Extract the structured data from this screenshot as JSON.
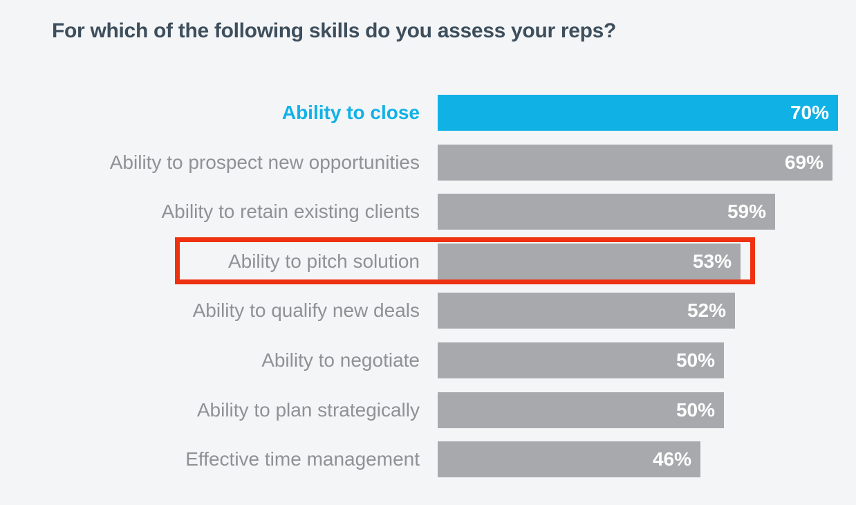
{
  "page": {
    "background": "#f4f5f7"
  },
  "chart_data": {
    "type": "bar",
    "orientation": "horizontal",
    "title": "For which of the following skills do you assess your reps?",
    "categories": [
      "Ability to close",
      "Ability to prospect new opportunities",
      "Ability to retain existing clients",
      "Ability to pitch solution",
      "Ability to qualify new deals",
      "Ability to negotiate",
      "Ability to plan strategically",
      "Effective time management"
    ],
    "values": [
      70,
      69,
      59,
      53,
      52,
      50,
      50,
      46
    ],
    "value_labels": [
      "70%",
      "69%",
      "59%",
      "53%",
      "52%",
      "50%",
      "50%",
      "46%"
    ],
    "value_suffix": "%",
    "xlim": [
      0,
      70
    ],
    "grid": false,
    "legend": "none",
    "emphasized_index": 0,
    "highlighted_index": 3,
    "annotations": [
      {
        "type": "highlight-box",
        "target_category": "Ability to pitch solution",
        "target_value": 53,
        "color": "#ee3110"
      }
    ],
    "colors": {
      "title_text": "#3d4e5c",
      "emphasized_bar": "#10b2e6",
      "bar": "#a7a9ac",
      "value_text": "#ffffff",
      "category_text": "#8f9194",
      "emphasized_category_text": "#10b2e6",
      "highlight_box": "#ee3110",
      "background": "#f4f5f7"
    }
  }
}
